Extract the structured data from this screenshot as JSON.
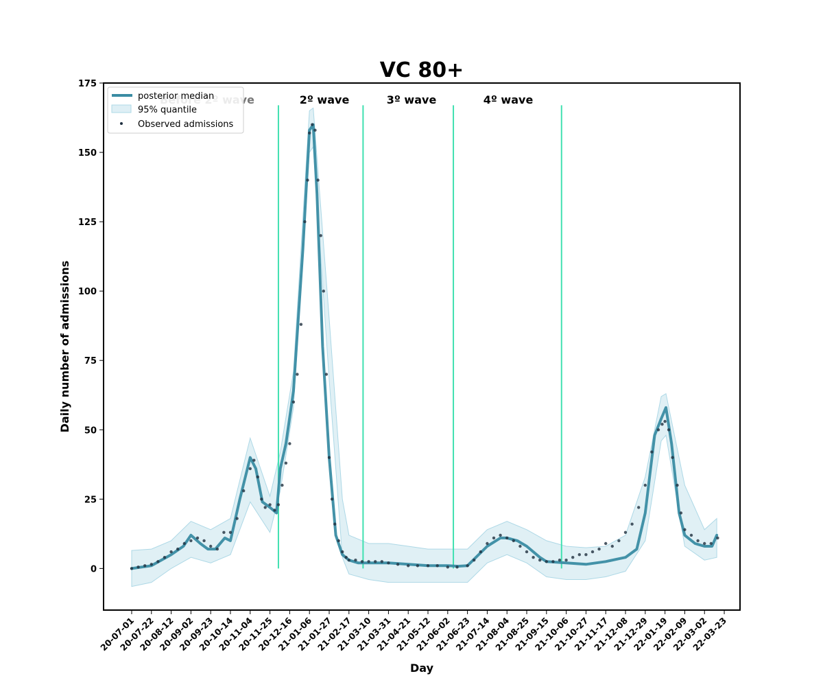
{
  "chart_data": {
    "type": "line",
    "title": "VC 80+",
    "xlabel": "Day",
    "ylabel": "Daily number of admissions",
    "x_start": "2020-07-01",
    "x_end": "2022-03-31",
    "ylim": [
      -15,
      175
    ],
    "yticks": [
      0,
      25,
      50,
      75,
      100,
      125,
      150,
      175
    ],
    "xtick_labels": [
      "20-07-01",
      "20-07-22",
      "20-08-12",
      "20-09-02",
      "20-09-23",
      "20-10-14",
      "20-11-04",
      "20-11-25",
      "20-12-16",
      "21-01-06",
      "21-01-27",
      "21-02-17",
      "21-03-10",
      "21-03-31",
      "21-04-21",
      "21-05-12",
      "21-06-02",
      "21-06-23",
      "21-07-14",
      "21-08-04",
      "21-08-25",
      "21-09-15",
      "21-10-06",
      "21-10-27",
      "21-11-17",
      "21-12-08",
      "21-12-29",
      "22-01-19",
      "22-02-09",
      "22-03-02",
      "22-03-23"
    ],
    "grid": false,
    "legend": {
      "position": "top-left",
      "entries": [
        "posterior median",
        "95% quantile",
        "Observed admissions"
      ]
    },
    "wave_dividers": [
      "2020-12-04",
      "2021-03-04",
      "2021-06-08",
      "2021-10-01"
    ],
    "wave_labels": [
      "Before 2º wave",
      "2º wave",
      "3º wave",
      "4º wave"
    ],
    "colors": {
      "median": "#3a8ca3",
      "band": "#add8e6",
      "observed": "#1f2f3f",
      "divider": "#40e0b0"
    },
    "series": [
      {
        "name": "posterior median",
        "x": [
          "2020-07-01",
          "2020-07-22",
          "2020-08-12",
          "2020-08-25",
          "2020-09-02",
          "2020-09-12",
          "2020-09-20",
          "2020-09-28",
          "2020-10-08",
          "2020-10-14",
          "2020-10-24",
          "2020-11-04",
          "2020-11-10",
          "2020-11-17",
          "2020-11-25",
          "2020-12-02",
          "2020-12-06",
          "2020-12-12",
          "2020-12-20",
          "2020-12-30",
          "2021-01-06",
          "2021-01-10",
          "2021-01-14",
          "2021-01-20",
          "2021-01-27",
          "2021-02-03",
          "2021-02-10",
          "2021-02-17",
          "2021-02-27",
          "2021-03-10",
          "2021-03-31",
          "2021-04-21",
          "2021-05-12",
          "2021-06-02",
          "2021-06-13",
          "2021-06-23",
          "2021-07-14",
          "2021-07-28",
          "2021-08-04",
          "2021-08-15",
          "2021-08-25",
          "2021-09-08",
          "2021-09-15",
          "2021-10-06",
          "2021-10-27",
          "2021-11-17",
          "2021-12-01",
          "2021-12-08",
          "2021-12-20",
          "2021-12-29",
          "2022-01-08",
          "2022-01-15",
          "2022-01-20",
          "2022-01-26",
          "2022-02-03",
          "2022-02-09",
          "2022-02-20",
          "2022-03-02",
          "2022-03-10",
          "2022-03-15"
        ],
        "values": [
          0,
          1,
          5,
          8,
          12,
          9,
          7,
          7,
          11,
          10,
          25,
          40,
          36,
          24,
          22,
          20,
          36,
          45,
          64,
          115,
          158,
          160,
          135,
          80,
          40,
          12,
          5,
          3,
          2,
          2,
          2,
          1.5,
          1,
          1,
          0.8,
          1,
          8,
          11,
          11,
          10,
          8,
          4,
          2.5,
          2,
          1.5,
          2.5,
          3.5,
          4,
          7,
          20,
          48,
          54,
          58,
          45,
          20,
          12,
          9,
          8,
          8,
          12
        ]
      },
      {
        "name": "95% quantile",
        "x": [
          "2020-07-01",
          "2020-07-22",
          "2020-08-12",
          "2020-09-02",
          "2020-09-23",
          "2020-10-14",
          "2020-11-04",
          "2020-11-25",
          "2020-12-06",
          "2020-12-20",
          "2021-01-06",
          "2021-01-10",
          "2021-01-27",
          "2021-02-10",
          "2021-02-17",
          "2021-03-10",
          "2021-03-31",
          "2021-04-21",
          "2021-05-12",
          "2021-06-02",
          "2021-06-23",
          "2021-07-14",
          "2021-08-04",
          "2021-08-25",
          "2021-09-15",
          "2021-10-06",
          "2021-10-27",
          "2021-11-17",
          "2021-12-08",
          "2021-12-29",
          "2022-01-15",
          "2022-01-20",
          "2022-02-09",
          "2022-03-02",
          "2022-03-15"
        ],
        "upper": [
          6.5,
          7,
          10,
          17,
          14,
          18,
          47,
          26,
          42,
          71,
          165,
          166,
          90,
          25,
          12,
          9,
          9,
          8,
          7,
          7,
          7,
          14,
          17,
          14,
          10,
          8,
          7.5,
          8,
          12,
          33,
          62,
          63,
          30,
          14,
          18
        ],
        "lower": [
          -6.5,
          -5,
          0,
          4,
          2,
          5,
          24,
          13,
          28,
          58,
          150,
          152,
          68,
          4,
          -2,
          -4,
          -5,
          -5,
          -5,
          -5,
          -5,
          2,
          5,
          2,
          -3,
          -4,
          -4,
          -3,
          -1,
          10,
          46,
          48,
          8,
          3,
          4
        ]
      },
      {
        "name": "Observed admissions",
        "x": [
          "2020-07-01",
          "2020-07-08",
          "2020-07-15",
          "2020-07-22",
          "2020-07-29",
          "2020-08-05",
          "2020-08-12",
          "2020-08-19",
          "2020-08-26",
          "2020-09-02",
          "2020-09-09",
          "2020-09-16",
          "2020-09-23",
          "2020-09-30",
          "2020-10-07",
          "2020-10-14",
          "2020-10-21",
          "2020-10-28",
          "2020-11-04",
          "2020-11-08",
          "2020-11-12",
          "2020-11-16",
          "2020-11-20",
          "2020-11-25",
          "2020-11-30",
          "2020-12-04",
          "2020-12-08",
          "2020-12-12",
          "2020-12-16",
          "2020-12-20",
          "2020-12-24",
          "2020-12-28",
          "2021-01-01",
          "2021-01-04",
          "2021-01-06",
          "2021-01-09",
          "2021-01-12",
          "2021-01-15",
          "2021-01-18",
          "2021-01-21",
          "2021-01-24",
          "2021-01-27",
          "2021-01-30",
          "2021-02-02",
          "2021-02-06",
          "2021-02-10",
          "2021-02-14",
          "2021-02-17",
          "2021-02-24",
          "2021-03-03",
          "2021-03-10",
          "2021-03-17",
          "2021-03-24",
          "2021-03-31",
          "2021-04-10",
          "2021-04-21",
          "2021-05-01",
          "2021-05-12",
          "2021-05-22",
          "2021-06-02",
          "2021-06-12",
          "2021-06-23",
          "2021-06-30",
          "2021-07-07",
          "2021-07-14",
          "2021-07-21",
          "2021-07-28",
          "2021-08-04",
          "2021-08-11",
          "2021-08-18",
          "2021-08-25",
          "2021-09-01",
          "2021-09-08",
          "2021-09-15",
          "2021-09-22",
          "2021-09-29",
          "2021-10-06",
          "2021-10-13",
          "2021-10-20",
          "2021-10-27",
          "2021-11-03",
          "2021-11-10",
          "2021-11-17",
          "2021-11-24",
          "2021-12-01",
          "2021-12-08",
          "2021-12-15",
          "2021-12-22",
          "2021-12-29",
          "2022-01-05",
          "2022-01-12",
          "2022-01-16",
          "2022-01-19",
          "2022-01-23",
          "2022-01-27",
          "2022-02-01",
          "2022-02-05",
          "2022-02-09",
          "2022-02-16",
          "2022-02-23",
          "2022-03-02",
          "2022-03-09",
          "2022-03-16"
        ],
        "values": [
          0,
          0.5,
          1,
          1.5,
          2.5,
          4,
          6,
          7,
          9,
          10,
          11,
          10,
          8,
          7,
          13,
          13,
          18,
          28,
          36,
          39,
          33,
          25,
          22,
          23,
          21,
          23,
          30,
          38,
          45,
          60,
          70,
          88,
          125,
          140,
          157,
          160,
          158,
          140,
          120,
          100,
          70,
          40,
          25,
          16,
          10,
          6,
          4,
          3,
          3,
          2.5,
          2.5,
          2.5,
          2.5,
          2,
          1.5,
          1,
          1,
          1,
          1,
          0.5,
          0.5,
          1,
          3,
          6,
          9,
          11,
          12,
          11,
          10,
          8,
          6,
          4,
          3,
          2.5,
          2.5,
          3,
          3,
          4,
          5,
          5,
          6,
          7,
          9,
          8,
          10,
          13,
          16,
          22,
          30,
          42,
          50,
          52,
          53,
          50,
          40,
          30,
          20,
          14,
          12,
          10,
          9,
          9,
          11
        ]
      }
    ]
  }
}
